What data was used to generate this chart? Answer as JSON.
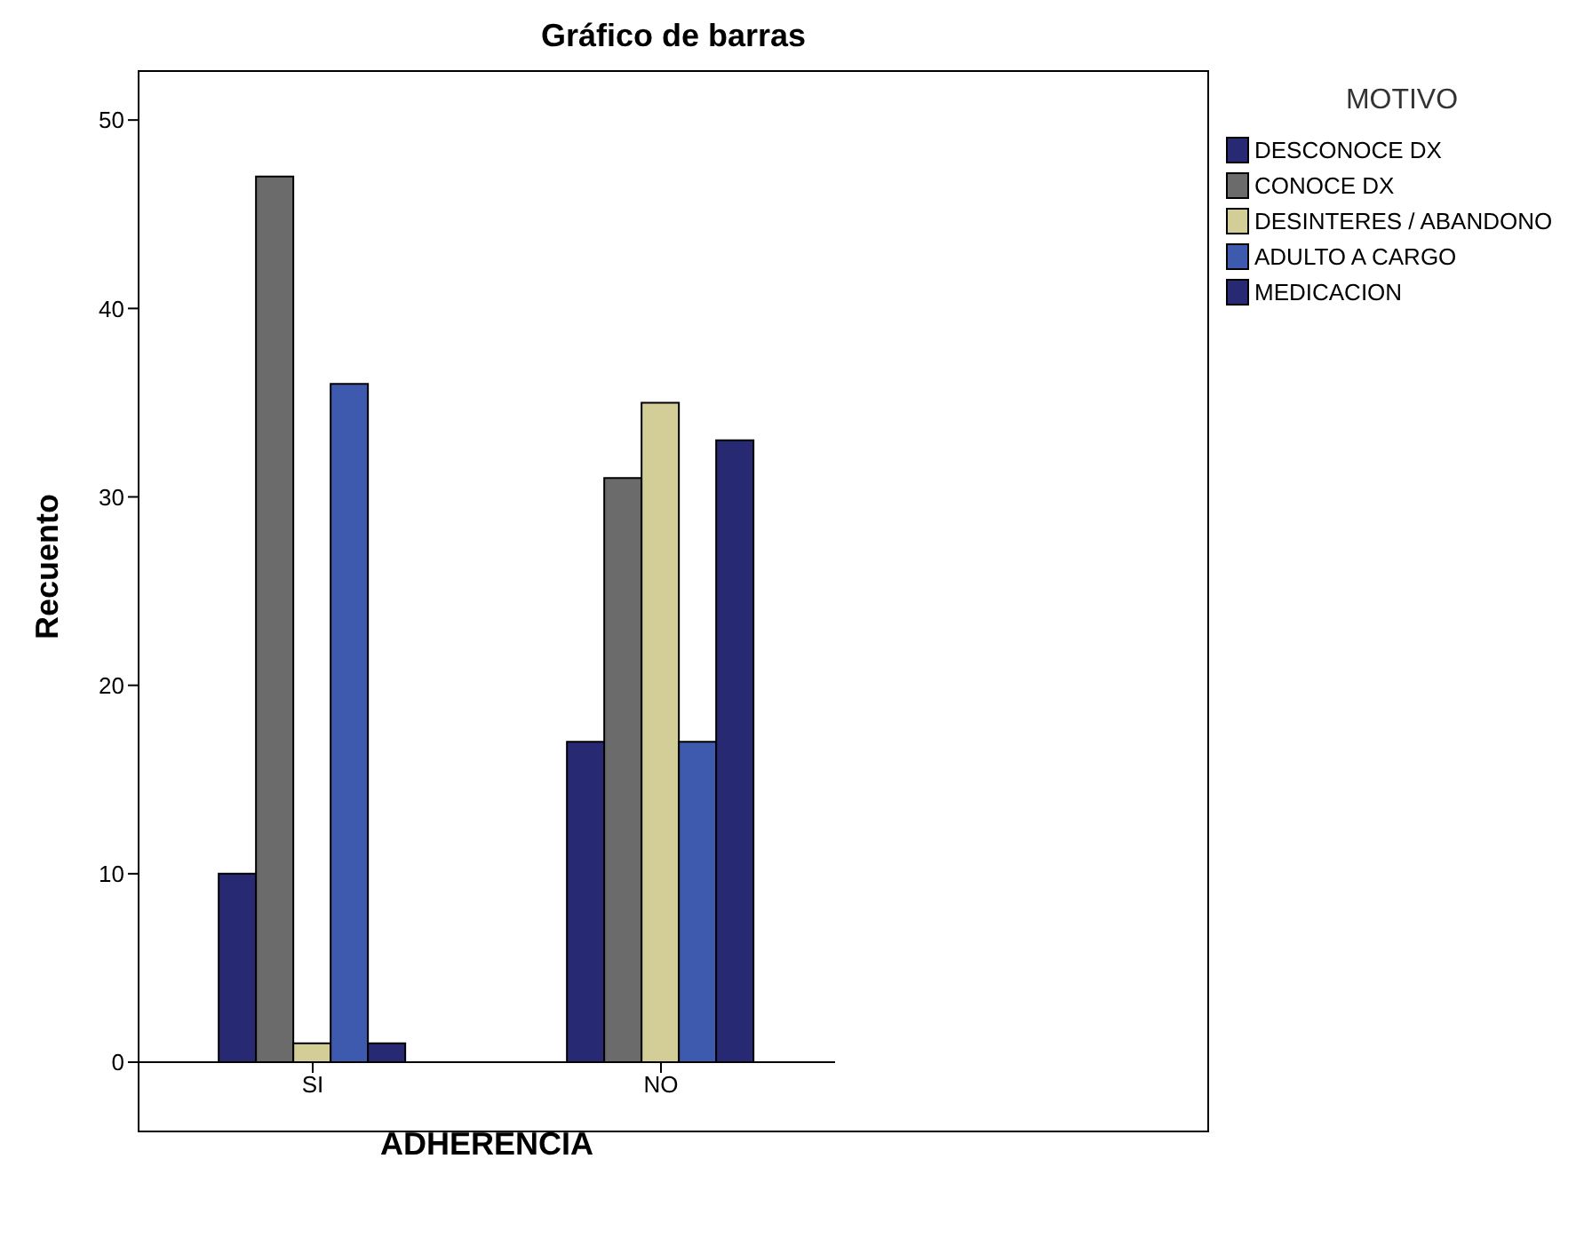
{
  "chart_data": {
    "type": "bar",
    "title": "Gráfico de barras",
    "xlabel": "ADHERENCIA",
    "ylabel": "Recuento",
    "legend_title": "MOTIVO",
    "categories": [
      "SI",
      "NO"
    ],
    "series": [
      {
        "name": "DESCONOCE DX",
        "color": "#272a72",
        "values": [
          10,
          17
        ]
      },
      {
        "name": "CONOCE DX",
        "color": "#6b6b6b",
        "values": [
          47,
          31
        ]
      },
      {
        "name": "DESINTERES / ABANDONO",
        "color": "#d3ce97",
        "values": [
          1,
          35
        ]
      },
      {
        "name": "ADULTO A CARGO",
        "color": "#3d5aae",
        "values": [
          36,
          17
        ]
      },
      {
        "name": "MEDICACION",
        "color": "#272a72",
        "values": [
          1,
          33
        ]
      }
    ],
    "ylim": [
      0,
      52.6
    ],
    "yticks": [
      0,
      10,
      20,
      30,
      40,
      50
    ],
    "grid": false,
    "legend": "top right"
  }
}
